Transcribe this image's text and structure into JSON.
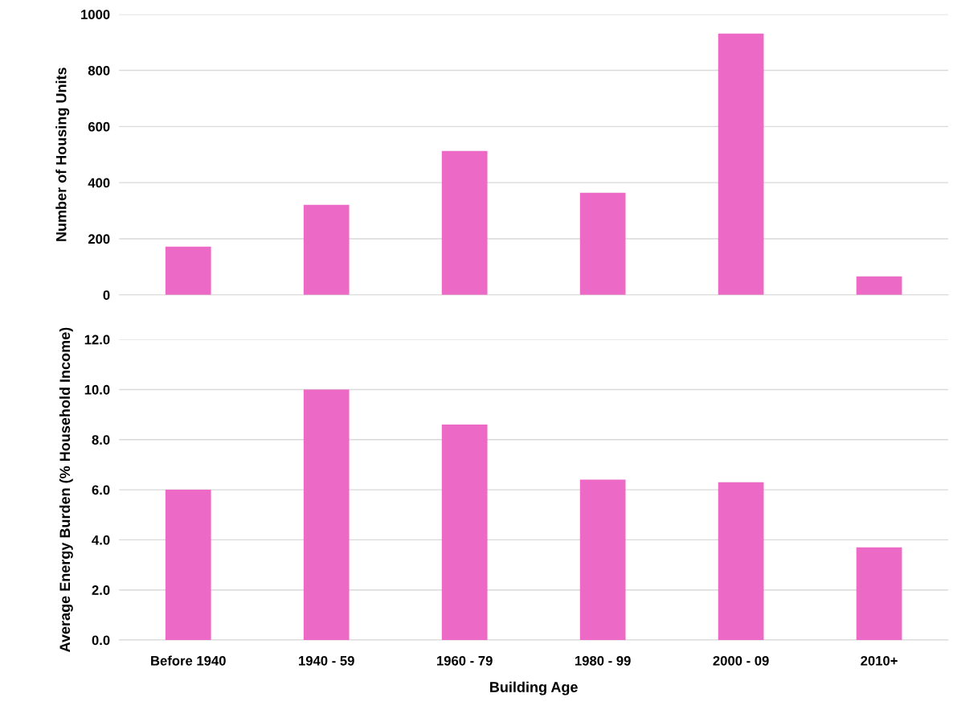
{
  "chart_data": [
    {
      "type": "bar",
      "ylabel": "Number of Housing Units",
      "categories": [
        null,
        null,
        null,
        null,
        null,
        null
      ],
      "values": [
        172,
        321,
        513,
        364,
        931,
        66
      ],
      "color": "#ec6ac5",
      "ylim": [
        0,
        1000
      ],
      "yticks": [
        0,
        200,
        400,
        600,
        800,
        1000
      ],
      "grid": "y",
      "tick_labels": "y"
    },
    {
      "type": "bar",
      "ylabel": "Average Energy Burden (% Household Income)",
      "xlabel": "Building Age",
      "categories": [
        "Before 1940",
        "1940 - 59",
        "1960 - 79",
        "1980 - 99",
        "2000 - 09",
        "2010+"
      ],
      "values": [
        6.0,
        10.0,
        8.6,
        6.4,
        6.3,
        3.7
      ],
      "color": "#ec6ac5",
      "ylim": [
        0,
        12
      ],
      "yticks": [
        {
          "value": 0,
          "label": "0.0"
        },
        {
          "value": 2,
          "label": "2.0"
        },
        {
          "value": 4,
          "label": "4.0"
        },
        {
          "value": 6,
          "label": "6.0"
        },
        {
          "value": 8,
          "label": "8.0"
        },
        {
          "value": 10,
          "label": "10.0"
        },
        {
          "value": 12,
          "label": "12.0"
        }
      ],
      "grid": "y"
    }
  ]
}
